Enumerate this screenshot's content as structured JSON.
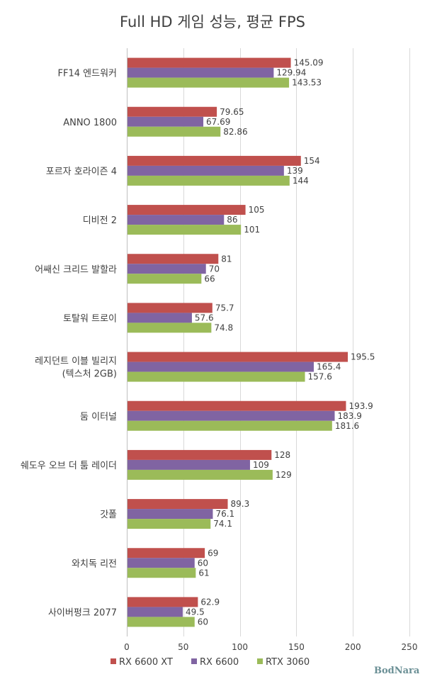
{
  "chart_data": {
    "type": "bar",
    "orientation": "horizontal",
    "title": "Full HD 게임 성능, 평균 FPS",
    "categories": [
      [
        "FF14 엔드워커"
      ],
      [
        "ANNO 1800"
      ],
      [
        "포르자 호라이즌 4"
      ],
      [
        "디비전 2"
      ],
      [
        "어쌔신 크리드 발할라"
      ],
      [
        "토탈워 트로이"
      ],
      [
        "레지던트 이블 빌리지",
        "(텍스처 2GB)"
      ],
      [
        "둠 이터널"
      ],
      [
        "쉐도우 오브 더 툼 레이더"
      ],
      [
        "갓폴"
      ],
      [
        "와치독 리전"
      ],
      [
        "사이버펑크 2077"
      ]
    ],
    "series": [
      {
        "name": "RX 6600 XT",
        "color": "#c0504d",
        "values": [
          145.09,
          79.65,
          154,
          105,
          81,
          75.7,
          195.5,
          193.9,
          128,
          89.3,
          69,
          62.9
        ],
        "labels": [
          "145.09",
          "79.65",
          "154",
          "105",
          "81",
          "75.7",
          "195.5",
          "193.9",
          "128",
          "89.3",
          "69",
          "62.9"
        ]
      },
      {
        "name": "RX 6600",
        "color": "#8064a2",
        "values": [
          129.94,
          67.69,
          139,
          86,
          70,
          57.6,
          165.4,
          183.9,
          109,
          76.1,
          60,
          49.5
        ],
        "labels": [
          "129.94",
          "67.69",
          "139",
          "86",
          "70",
          "57.6",
          "165.4",
          "183.9",
          "109",
          "76.1",
          "60",
          "49.5"
        ]
      },
      {
        "name": "RTX 3060",
        "color": "#9bbb59",
        "values": [
          143.53,
          82.86,
          144,
          101,
          66,
          74.8,
          157.6,
          181.6,
          129,
          74.1,
          61,
          60
        ],
        "labels": [
          "143.53",
          "82.86",
          "144",
          "101",
          "66",
          "74.8",
          "157.6",
          "181.6",
          "129",
          "74.1",
          "61",
          "60"
        ]
      }
    ],
    "xlim": [
      0,
      250
    ],
    "xticks": [
      0,
      50,
      100,
      150,
      200,
      250
    ],
    "xtick_labels": [
      "0",
      "50",
      "100",
      "150",
      "200",
      "250"
    ],
    "grid": true,
    "legend_position": "bottom"
  },
  "watermark": "BodNara"
}
